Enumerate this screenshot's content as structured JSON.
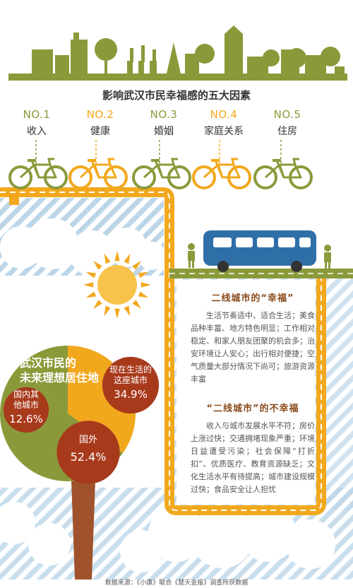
{
  "colors": {
    "olive": "#8a9a3a",
    "orange": "#f2a81d",
    "brown": "#a83a1c",
    "blue": "#3b74aa",
    "stripe": "#b9d3e6",
    "trunk": "#a0522d"
  },
  "title": "影响武汉市民幸福感的五大因素",
  "factors": [
    {
      "rank": "NO.1",
      "name": "收入",
      "color": "#8a9a3a"
    },
    {
      "rank": "NO.2",
      "name": "健康",
      "color": "#f2a81d"
    },
    {
      "rank": "NO.3",
      "name": "婚姻",
      "color": "#8a9a3a"
    },
    {
      "rank": "NO.4",
      "name": "家庭关系",
      "color": "#f2a81d"
    },
    {
      "rank": "NO.5",
      "name": "住房",
      "color": "#8a9a3a"
    }
  ],
  "panel": {
    "happy_title": "二线城市的“幸福”",
    "happy_text": "生活节奏适中、适合生活；美食品种丰富、地方特色明显；工作相对稳定、和家人朋友团聚的机会多；治安环境让人安心；出行相对便捷；空气质量大部分情况下尚可；旅游资源丰富",
    "unhappy_title": "“二线城市”的不幸福",
    "unhappy_text": "收入与城市发展水平不符；房价上涨过快；交通拥堵现象严重；环境日益遭受污染；社会保障“打折扣”、优质医疗、教育资源缺乏；文化生活水平有待提高；城市建设规模过快；食品安全让人担忧"
  },
  "pie_title_line1": "武汉市民的",
  "pie_title_line2": "未来理想居住地",
  "chart_data": {
    "type": "pie",
    "title": "武汉市民的未来理想居住地",
    "slices": [
      {
        "name": "现在生活的这座城市",
        "name_line1": "现在生活的",
        "name_line2": "这座城市",
        "value": 34.9,
        "label": "34.9%"
      },
      {
        "name": "国外",
        "value": 52.4,
        "label": "52.4%"
      },
      {
        "name": "国内其他城市",
        "name_line1": "国内其",
        "name_line2": "他城市",
        "value": 12.6,
        "label": "12.6%"
      }
    ]
  },
  "source": "数据来源：《小康》联合《楚天金报》调查所获数据"
}
